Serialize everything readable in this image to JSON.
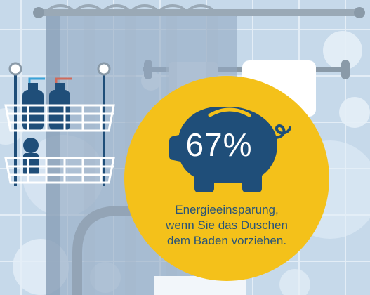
{
  "stat": {
    "value": "67%",
    "line1": "Energieeinsparung,",
    "line2": "wenn Sie das Duschen",
    "line3": "dem Baden vorziehen."
  },
  "icons": {
    "main": "piggy-bank-icon",
    "scene": [
      "shower-curtain-rod-icon",
      "shower-curtain-icon",
      "shower-caddy-icon",
      "shampoo-bottle-icon",
      "towel-rail-icon",
      "towel-icon",
      "bathtub-icon"
    ]
  },
  "colors": {
    "accent": "#f4c11a",
    "navy": "#1f4e79",
    "text": "#2a5478",
    "tile": "#c6d9ea",
    "bubble": "#e4eef7"
  }
}
